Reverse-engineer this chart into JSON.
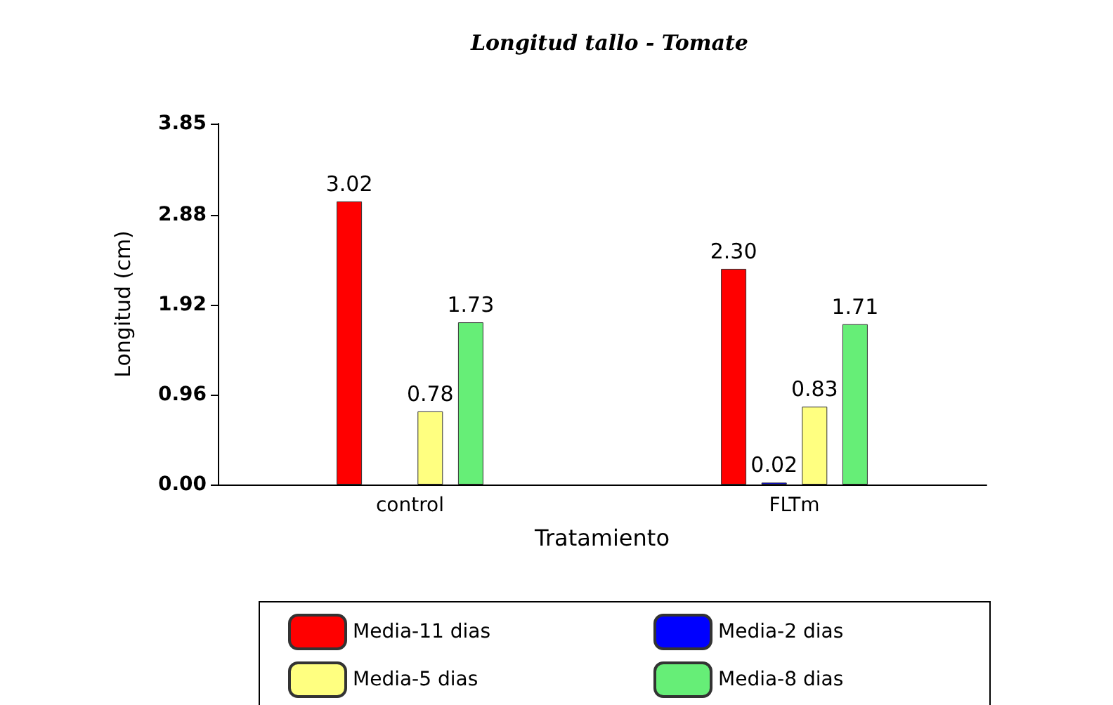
{
  "chart_data": {
    "type": "bar",
    "title": "Longitud tallo - Tomate",
    "xlabel": "Tratamiento",
    "ylabel": "Longitud (cm)",
    "categories": [
      "control",
      "FLTm"
    ],
    "series": [
      {
        "name": "Media-11 dias",
        "color": "#ff0000",
        "values": [
          3.02,
          2.3
        ],
        "value_labels": [
          "3.02",
          "2.30"
        ]
      },
      {
        "name": "Media-2 dias",
        "color": "#0000ff",
        "values": [
          null,
          0.02
        ],
        "value_labels": [
          null,
          "0.02"
        ]
      },
      {
        "name": "Media-5 dias",
        "color": "#ffff80",
        "values": [
          0.78,
          0.83
        ],
        "value_labels": [
          "0.78",
          "0.83"
        ]
      },
      {
        "name": "Media-8 dias",
        "color": "#66ee77",
        "values": [
          1.73,
          1.71
        ],
        "value_labels": [
          "1.73",
          "1.71"
        ]
      }
    ],
    "ylim": [
      0,
      3.85
    ],
    "yticks": [
      {
        "value": 0,
        "label": "0.00"
      },
      0.96,
      1.92,
      2.88,
      3.85
    ],
    "grid": false,
    "legend": "bottom"
  }
}
